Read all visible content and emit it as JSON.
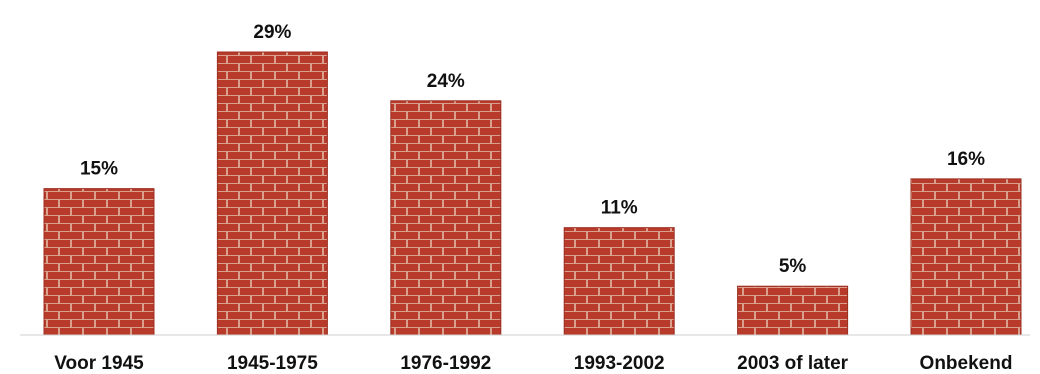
{
  "chart_data": {
    "type": "bar",
    "categories": [
      "Voor 1945",
      "1945-1975",
      "1976-1992",
      "1993-2002",
      "2003 of later",
      "Onbekend"
    ],
    "values": [
      15,
      29,
      24,
      11,
      5,
      16
    ],
    "value_labels": [
      "15%",
      "29%",
      "24%",
      "11%",
      "5%",
      "16%"
    ],
    "title": "",
    "xlabel": "",
    "ylabel": "",
    "unit": "%",
    "ylim": [
      0,
      29
    ],
    "grid": false,
    "legend": "none"
  },
  "colors": {
    "brick": "#b83a2a",
    "mortar": "#d9a08e",
    "brick_dark": "#9c2f22"
  }
}
